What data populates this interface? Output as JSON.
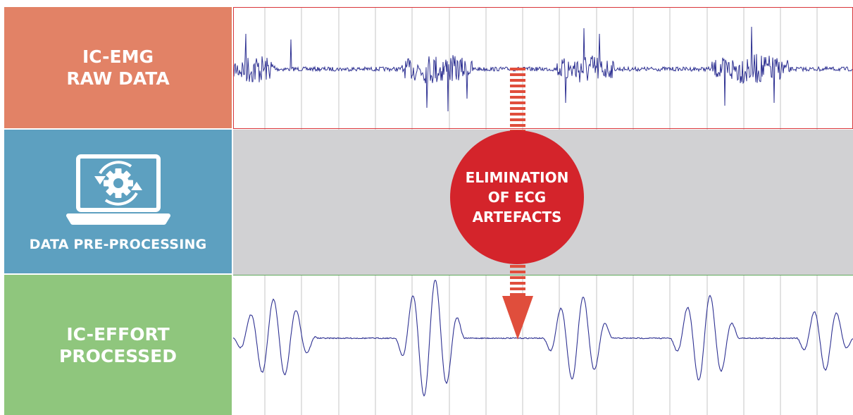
{
  "colors": {
    "raw_box": "#e28266",
    "pre_box": "#5da0c0",
    "proc_box": "#8fc67d",
    "band_gray": "#d1d1d3",
    "raw_border": "#d9363a",
    "proc_border": "#5fa85a",
    "trace": "#2e3192",
    "grid": "#c4c4c4",
    "arrow": "#e04e3c",
    "circle": "#d4242b"
  },
  "raw": {
    "line1": "IC-EMG",
    "line2": "RAW DATA"
  },
  "preprocessing": {
    "label": "DATA PRE-PROCESSING",
    "icon": "laptop-gear-cycle-icon"
  },
  "processed": {
    "line1": "IC-EFFORT",
    "line2": "PROCESSED"
  },
  "elimination": {
    "line1": "ELIMINATION",
    "line2": "OF ECG",
    "line3": "ARTEFACTS"
  }
}
